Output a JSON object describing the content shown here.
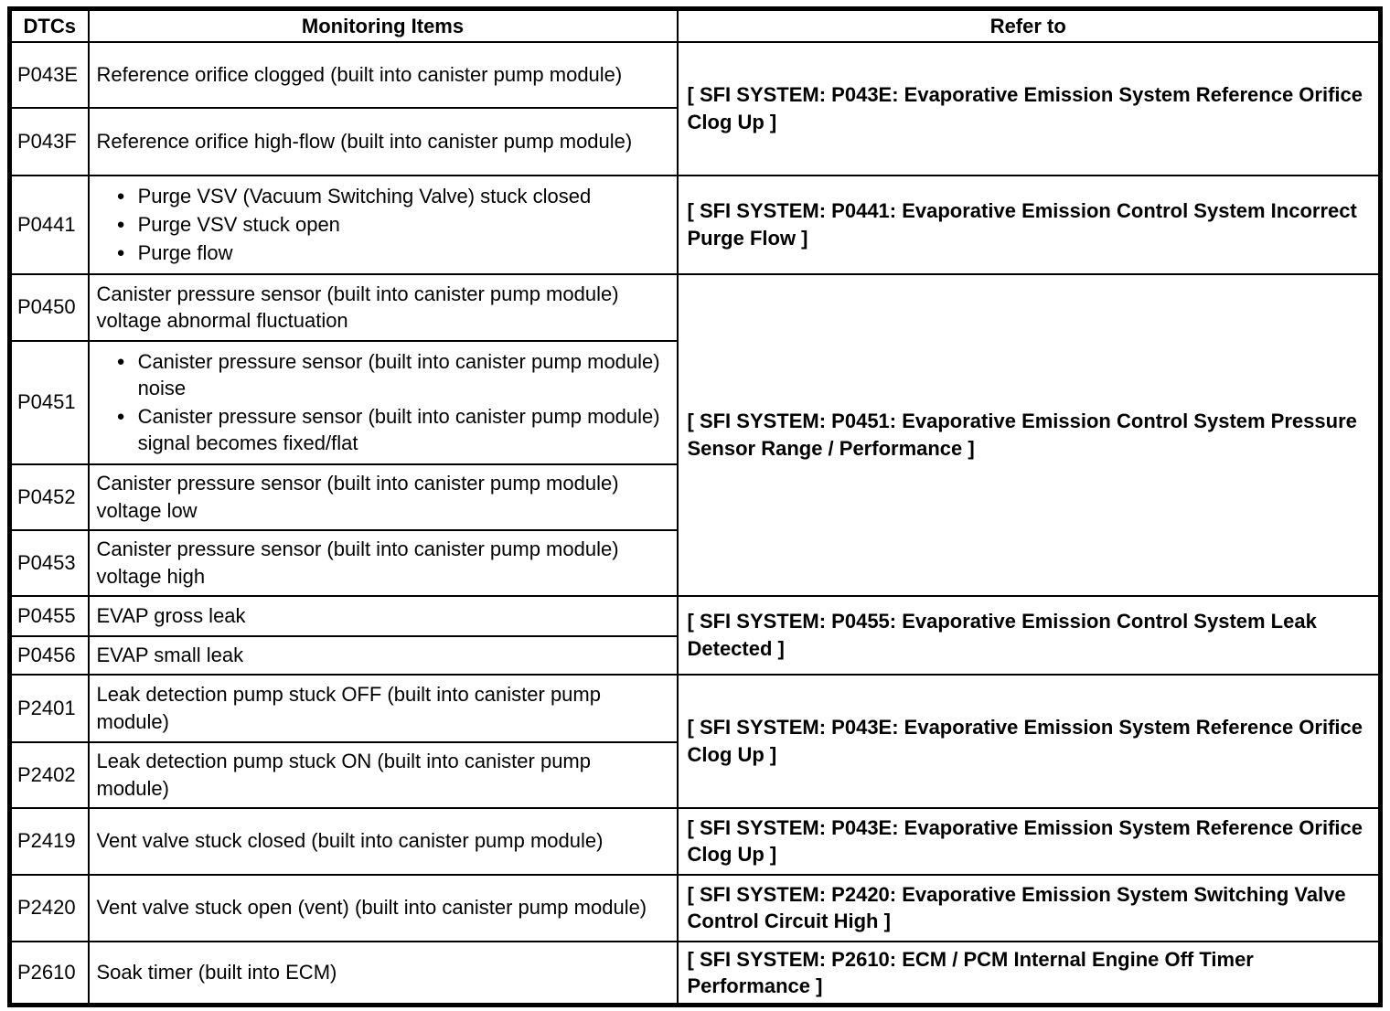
{
  "table": {
    "headers": [
      "DTCs",
      "Monitoring Items",
      "Refer to"
    ],
    "rows": [
      {
        "dtc": "P043E",
        "bulleted": false,
        "items": [
          "Reference orifice clogged (built into canister pump module)"
        ],
        "refer": "[ SFI SYSTEM: P043E: Evaporative Emission System Reference Orifice Clog Up ]",
        "refer_rowspan": 2
      },
      {
        "dtc": "P043F",
        "bulleted": false,
        "items": [
          "Reference orifice high-flow (built into canister pump module)"
        ]
      },
      {
        "dtc": "P0441",
        "bulleted": true,
        "items": [
          "Purge VSV (Vacuum Switching Valve) stuck closed",
          "Purge VSV stuck open",
          "Purge flow"
        ],
        "refer": "[ SFI SYSTEM: P0441: Evaporative Emission Control System Incorrect Purge Flow ]",
        "refer_rowspan": 1
      },
      {
        "dtc": "P0450",
        "bulleted": false,
        "items": [
          "Canister pressure sensor (built into canister pump module) voltage abnormal fluctuation"
        ],
        "refer": "[ SFI SYSTEM: P0451: Evaporative Emission Control System Pressure Sensor Range / Performance ]",
        "refer_rowspan": 4
      },
      {
        "dtc": "P0451",
        "bulleted": true,
        "items": [
          "Canister pressure sensor (built into canister pump module) noise",
          "Canister pressure sensor (built into canister pump module) signal becomes fixed/flat"
        ]
      },
      {
        "dtc": "P0452",
        "bulleted": false,
        "items": [
          "Canister pressure sensor (built into canister pump module) voltage low"
        ]
      },
      {
        "dtc": "P0453",
        "bulleted": false,
        "items": [
          "Canister pressure sensor (built into canister pump module) voltage high"
        ]
      },
      {
        "dtc": "P0455",
        "bulleted": false,
        "items": [
          "EVAP gross leak"
        ],
        "refer": "[ SFI SYSTEM: P0455: Evaporative Emission Control System Leak Detected ]",
        "refer_rowspan": 2
      },
      {
        "dtc": "P0456",
        "bulleted": false,
        "items": [
          "EVAP small leak"
        ]
      },
      {
        "dtc": "P2401",
        "bulleted": false,
        "items": [
          "Leak detection pump stuck OFF (built into canister pump module)"
        ],
        "refer": "[ SFI SYSTEM: P043E: Evaporative Emission System Reference Orifice Clog Up ]",
        "refer_rowspan": 2
      },
      {
        "dtc": "P2402",
        "bulleted": false,
        "items": [
          "Leak detection pump stuck ON (built into canister pump module)"
        ]
      },
      {
        "dtc": "P2419",
        "bulleted": false,
        "items": [
          "Vent valve stuck closed (built into canister pump module)"
        ],
        "refer": "[ SFI SYSTEM: P043E: Evaporative Emission System Reference Orifice Clog Up ]",
        "refer_rowspan": 1
      },
      {
        "dtc": "P2420",
        "bulleted": false,
        "items": [
          "Vent valve stuck open (vent) (built into canister pump module)"
        ],
        "refer": "[ SFI SYSTEM: P2420: Evaporative Emission System Switching Valve Control Circuit High ]",
        "refer_rowspan": 1
      },
      {
        "dtc": "P2610",
        "bulleted": false,
        "items": [
          "Soak timer (built into ECM)"
        ],
        "refer": "[ SFI SYSTEM: P2610: ECM / PCM Internal Engine Off Timer Performance ]",
        "refer_rowspan": 1
      }
    ]
  }
}
